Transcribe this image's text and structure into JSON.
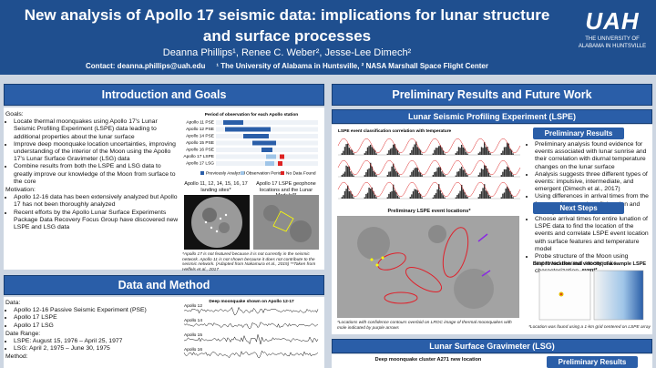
{
  "header": {
    "title": "New analysis of Apollo 17 seismic data: implications for lunar structure and surface processes",
    "authors": "Deanna Phillips¹, Renee C. Weber², Jesse-Lee Dimech²",
    "contact": "Contact: deanna.phillips@uah.edu",
    "affiliations": "¹ The University of Alabama in Huntsville, ² NASA Marshall Space Flight Center",
    "logo": "UAH",
    "logo_subtitle": "THE UNIVERSITY OF ALABAMA IN HUNTSVILLE"
  },
  "intro": {
    "heading": "Introduction and Goals",
    "goals_label": "Goals:",
    "goals": [
      "Locate thermal moonquakes using Apollo 17's Lunar Seismic Profiling Experiment (LSPE) data leading to additional properties about the lunar surface",
      "Improve deep moonquake location uncertainties, improving understanding of the interior of the Moon using the Apollo 17's Lunar Surface Gravimeter (LSG) data",
      "Combine results from both the LSPE and LSG data to greatly improve our knowledge of the Moon from surface to the core"
    ],
    "motivation_label": "Motivation:",
    "motivation": [
      "Apollo 12-16 data has been extensively analyzed but Apollo 17 has not been thoroughly analyzed",
      "Recent efforts by the Apollo Lunar Surface Experiments Package Data Recovery Focus Group have discovered new LSPE and LSG data"
    ],
    "timeline_title": "Period of observation for each Apollo station",
    "stations": [
      "Apollo 11 PSE",
      "Apollo 12 PSE",
      "Apollo 14 PSE",
      "Apollo 15 PSE",
      "Apollo 16 PSE",
      "Apollo 17 LSPE",
      "Apollo 17 LSG"
    ],
    "legend": [
      "Previously Analyzed",
      "Observation Period",
      "No Data Found"
    ],
    "sites_caption": "Apollo 11, 12, 14, 15, 16, 17 landing sites*",
    "lspe_caption": "Apollo 17 LSPE geophone locations and the Lunar Module**",
    "footnote": "*Apollo 17 is not featured because it is not currently in the seismic network. Apollo 11 is not shown because it does not contribute to the seismic network. (Adapted from Nakamura et al., 2015) **Taken from Heffels et al., 2017"
  },
  "data_method": {
    "heading": "Data and Method",
    "data_label": "Data:",
    "data": [
      "Apollo 12-16 Passive Seismic Experiment (PSE)",
      "Apollo 17 LSPE",
      "Apollo 17 LSG"
    ],
    "range_label": "Date Range:",
    "range": [
      "LSPE: August 15, 1976 – April 25, 1977",
      "LSG: April 2, 1975 – June 30, 1975"
    ],
    "method_label": "Method:",
    "figure_title": "Deep moonquake shown on Apollo 12-17",
    "traces": [
      "Apollo 12",
      "Apollo 14",
      "Apollo 15",
      "Apollo 16"
    ]
  },
  "results": {
    "heading": "Preliminary Results and Future Work",
    "lspe": {
      "heading": "Lunar Seismic Profiling Experiment (LSPE)",
      "fig1_title": "LSPE event classification correlation with temperature",
      "fig2_title": "Preliminary LSPE event locations*",
      "fig2_caption": "*Locations with confidence contours overlaid on LROC image of thermal moonquakes with mole indicated by purple arrows",
      "prelim_heading": "Preliminary Results",
      "prelim": [
        "Preliminary analysis found evidence for events associated with lunar sunrise and their correlation with diurnal temperature changes on the lunar surface",
        "Analysis suggests three different types of events: impulsive, intermediate, and emergent (Dimech et al., 2017)",
        "Using differences in arrival times from the four geophones, a best fit location and velocity can be found"
      ],
      "next_heading": "Next Steps",
      "next": [
        "Choose arrival times for entire lunation of LSPE data to find the location of the events and correlate LSPE event location with surface features and temperature model",
        "Probe structure of the Moon using improved thermal moonquake characterization"
      ],
      "fig3_title": "Best fit location and velocity of a sample LSPE event*",
      "fig3_caption": "*Location was found using a 1-km grid centered on LSPE array"
    },
    "lsg": {
      "heading": "Lunar Surface Gravimeter (LSG)",
      "fig_title": "Deep moonquake cluster A271 new location",
      "prelim_heading": "Preliminary Results"
    }
  }
}
